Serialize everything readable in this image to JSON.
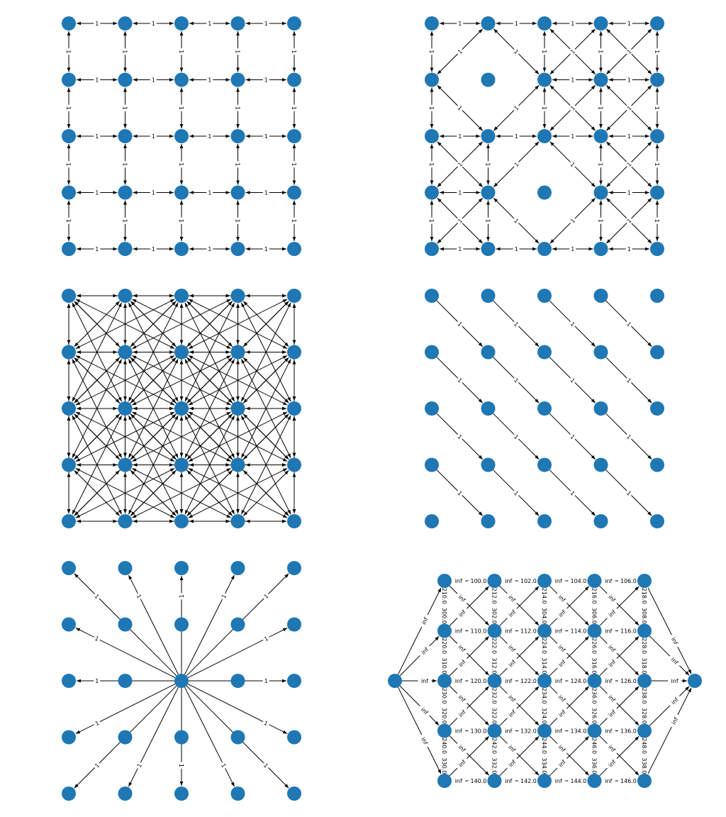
{
  "colors": {
    "node": "#1f77b4",
    "edge": "#000000",
    "label_bg": "#ffffff"
  },
  "panels": [
    {
      "id": "grid4",
      "description": "5x5 grid, 4-neighborhood, bidirectional arrows, weight 1",
      "nodes": [
        [
          0,
          0
        ],
        [
          0,
          1
        ],
        [
          0,
          2
        ],
        [
          0,
          3
        ],
        [
          0,
          4
        ],
        [
          1,
          0
        ],
        [
          1,
          1
        ],
        [
          1,
          2
        ],
        [
          1,
          3
        ],
        [
          1,
          4
        ],
        [
          2,
          0
        ],
        [
          2,
          1
        ],
        [
          2,
          2
        ],
        [
          2,
          3
        ],
        [
          2,
          4
        ],
        [
          3,
          0
        ],
        [
          3,
          1
        ],
        [
          3,
          2
        ],
        [
          3,
          3
        ],
        [
          3,
          4
        ],
        [
          4,
          0
        ],
        [
          4,
          1
        ],
        [
          4,
          2
        ],
        [
          4,
          3
        ],
        [
          4,
          4
        ]
      ],
      "pattern": "grid4",
      "edge_label": "1"
    },
    {
      "id": "mixed",
      "description": "5x5 grid with 4-neighbor and diagonal arrows except two isolated nodes",
      "nodes": [
        [
          0,
          0
        ],
        [
          0,
          1
        ],
        [
          0,
          2
        ],
        [
          0,
          3
        ],
        [
          0,
          4
        ],
        [
          1,
          0
        ],
        [
          1,
          1
        ],
        [
          1,
          2
        ],
        [
          1,
          3
        ],
        [
          1,
          4
        ],
        [
          2,
          0
        ],
        [
          2,
          1
        ],
        [
          2,
          2
        ],
        [
          2,
          3
        ],
        [
          2,
          4
        ],
        [
          3,
          0
        ],
        [
          3,
          1
        ],
        [
          3,
          2
        ],
        [
          3,
          3
        ],
        [
          3,
          4
        ],
        [
          4,
          0
        ],
        [
          4,
          1
        ],
        [
          4,
          2
        ],
        [
          4,
          3
        ],
        [
          4,
          4
        ]
      ],
      "isolated": [
        [
          1,
          1
        ],
        [
          3,
          2
        ]
      ],
      "pattern": "mixed",
      "edge_label": "1"
    },
    {
      "id": "dense",
      "description": "5x5 grid with dense connections within distance 2",
      "nodes": [
        [
          0,
          0
        ],
        [
          0,
          1
        ],
        [
          0,
          2
        ],
        [
          0,
          3
        ],
        [
          0,
          4
        ],
        [
          1,
          0
        ],
        [
          1,
          1
        ],
        [
          1,
          2
        ],
        [
          1,
          3
        ],
        [
          1,
          4
        ],
        [
          2,
          0
        ],
        [
          2,
          1
        ],
        [
          2,
          2
        ],
        [
          2,
          3
        ],
        [
          2,
          4
        ],
        [
          3,
          0
        ],
        [
          3,
          1
        ],
        [
          3,
          2
        ],
        [
          3,
          3
        ],
        [
          3,
          4
        ],
        [
          4,
          0
        ],
        [
          4,
          1
        ],
        [
          4,
          2
        ],
        [
          4,
          3
        ],
        [
          4,
          4
        ]
      ],
      "pattern": "dense",
      "edge_label": ""
    },
    {
      "id": "diag",
      "description": "5x5 grid, one-way diagonal arrows down-right",
      "nodes": [
        [
          0,
          0
        ],
        [
          0,
          1
        ],
        [
          0,
          2
        ],
        [
          0,
          3
        ],
        [
          0,
          4
        ],
        [
          1,
          0
        ],
        [
          1,
          1
        ],
        [
          1,
          2
        ],
        [
          1,
          3
        ],
        [
          1,
          4
        ],
        [
          2,
          0
        ],
        [
          2,
          1
        ],
        [
          2,
          2
        ],
        [
          2,
          3
        ],
        [
          2,
          4
        ],
        [
          3,
          0
        ],
        [
          3,
          1
        ],
        [
          3,
          2
        ],
        [
          3,
          3
        ],
        [
          3,
          4
        ],
        [
          4,
          0
        ],
        [
          4,
          1
        ],
        [
          4,
          2
        ],
        [
          4,
          3
        ],
        [
          4,
          4
        ]
      ],
      "pattern": "diag",
      "edge_label": "1"
    },
    {
      "id": "star",
      "description": "5x5 grid, arrows radiating from center node",
      "nodes": [
        [
          0,
          0
        ],
        [
          0,
          1
        ],
        [
          0,
          2
        ],
        [
          0,
          3
        ],
        [
          0,
          4
        ],
        [
          1,
          0
        ],
        [
          1,
          1
        ],
        [
          1,
          2
        ],
        [
          1,
          3
        ],
        [
          1,
          4
        ],
        [
          2,
          0
        ],
        [
          2,
          1
        ],
        [
          2,
          2
        ],
        [
          2,
          3
        ],
        [
          2,
          4
        ],
        [
          3,
          0
        ],
        [
          3,
          1
        ],
        [
          3,
          2
        ],
        [
          3,
          3
        ],
        [
          3,
          4
        ],
        [
          4,
          0
        ],
        [
          4,
          1
        ],
        [
          4,
          2
        ],
        [
          4,
          3
        ],
        [
          4,
          4
        ]
      ],
      "pattern": "star",
      "edge_label": "1"
    },
    {
      "id": "flow",
      "description": "source and sink with 5x5 grid between; capacity labels",
      "pattern": "flow",
      "source_label": "inf",
      "h_labels": [
        [
          "100.0",
          "102.0",
          "104.0",
          "106.0"
        ],
        [
          "110.0",
          "112.0",
          "114.0",
          "116.0"
        ],
        [
          "120.0",
          "122.0",
          "124.0",
          "126.0"
        ],
        [
          "130.0",
          "132.0",
          "134.0",
          "136.0"
        ],
        [
          "140.0",
          "142.0",
          "144.0",
          "146.0"
        ]
      ],
      "v_labels": [
        [
          "210.0",
          "212.0",
          "214.0",
          "216.0",
          "218.0"
        ],
        [
          "220.0",
          "222.0",
          "224.0",
          "226.0",
          "228.0"
        ],
        [
          "230.0",
          "232.0",
          "234.0",
          "236.0",
          "238.0"
        ],
        [
          "240.0",
          "242.0",
          "244.0",
          "246.0",
          "248.0"
        ]
      ],
      "v_labels2": [
        [
          "300.0",
          "302.0",
          "304.0",
          "306.0",
          "308.0"
        ],
        [
          "310.0",
          "312.0",
          "314.0",
          "316.0",
          "318.0"
        ],
        [
          "320.0",
          "322.0",
          "324.0",
          "326.0",
          "328.0"
        ],
        [
          "330.0",
          "332.0",
          "334.0",
          "336.0",
          "338.0"
        ]
      ],
      "diag_label": "inf"
    }
  ]
}
